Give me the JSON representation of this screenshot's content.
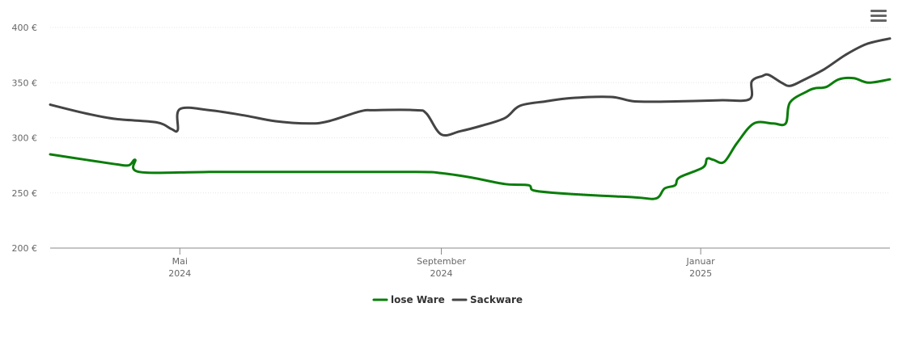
{
  "chart_data": {
    "type": "line",
    "y_ticks": [
      "200 €",
      "250 €",
      "300 €",
      "350 €",
      "400 €"
    ],
    "y_tick_values": [
      200,
      250,
      300,
      350,
      400
    ],
    "ylim": [
      200,
      400
    ],
    "x_range": [
      "2024-03-01",
      "2025-03-31"
    ],
    "x_ticks": [
      {
        "date": "2024-05-01",
        "label": "Mai",
        "year": "2024"
      },
      {
        "date": "2024-09-01",
        "label": "September",
        "year": "2024"
      },
      {
        "date": "2025-01-01",
        "label": "Januar",
        "year": "2025"
      }
    ],
    "grid": true,
    "legend_position": "bottom-center",
    "series": [
      {
        "name": "lose Ware",
        "color": "#0a7d0a",
        "points": [
          [
            "2024-03-01",
            285
          ],
          [
            "2024-03-18",
            280
          ],
          [
            "2024-04-01",
            276
          ],
          [
            "2024-04-07",
            275
          ],
          [
            "2024-04-10",
            280
          ],
          [
            "2024-04-12",
            269
          ],
          [
            "2024-05-15",
            269
          ],
          [
            "2024-07-01",
            269
          ],
          [
            "2024-08-20",
            269
          ],
          [
            "2024-09-01",
            268
          ],
          [
            "2024-09-15",
            264
          ],
          [
            "2024-10-01",
            258
          ],
          [
            "2024-10-12",
            257
          ],
          [
            "2024-10-15",
            252
          ],
          [
            "2024-11-01",
            249
          ],
          [
            "2024-12-01",
            246
          ],
          [
            "2024-12-11",
            245
          ],
          [
            "2024-12-15",
            254
          ],
          [
            "2024-12-20",
            257
          ],
          [
            "2024-12-22",
            264
          ],
          [
            "2025-01-02",
            273
          ],
          [
            "2025-01-04",
            281
          ],
          [
            "2025-01-07",
            280
          ],
          [
            "2025-01-12",
            278
          ],
          [
            "2025-01-18",
            295
          ],
          [
            "2025-01-26",
            313
          ],
          [
            "2025-02-04",
            313
          ],
          [
            "2025-02-10",
            313
          ],
          [
            "2025-02-12",
            332
          ],
          [
            "2025-02-20",
            342
          ],
          [
            "2025-02-24",
            345
          ],
          [
            "2025-03-01",
            346
          ],
          [
            "2025-03-07",
            353
          ],
          [
            "2025-03-14",
            354
          ],
          [
            "2025-03-21",
            350
          ],
          [
            "2025-03-31",
            353
          ]
        ]
      },
      {
        "name": "Sackware",
        "color": "#444444",
        "points": [
          [
            "2024-03-01",
            330
          ],
          [
            "2024-03-18",
            322
          ],
          [
            "2024-04-01",
            317
          ],
          [
            "2024-04-20",
            314
          ],
          [
            "2024-04-27",
            308
          ],
          [
            "2024-04-30",
            307
          ],
          [
            "2024-05-01",
            326
          ],
          [
            "2024-05-15",
            325
          ],
          [
            "2024-06-01",
            320
          ],
          [
            "2024-06-15",
            315
          ],
          [
            "2024-07-01",
            313
          ],
          [
            "2024-07-10",
            315
          ],
          [
            "2024-07-25",
            324
          ],
          [
            "2024-08-01",
            325
          ],
          [
            "2024-08-20",
            325
          ],
          [
            "2024-08-25",
            322
          ],
          [
            "2024-09-01",
            303
          ],
          [
            "2024-09-10",
            306
          ],
          [
            "2024-09-20",
            311
          ],
          [
            "2024-10-01",
            318
          ],
          [
            "2024-10-08",
            329
          ],
          [
            "2024-10-20",
            333
          ],
          [
            "2024-11-01",
            336
          ],
          [
            "2024-11-20",
            337
          ],
          [
            "2024-12-01",
            333
          ],
          [
            "2024-12-20",
            333
          ],
          [
            "2025-01-10",
            334
          ],
          [
            "2025-01-24",
            335
          ],
          [
            "2025-01-25",
            351
          ],
          [
            "2025-01-30",
            356
          ],
          [
            "2025-02-02",
            357
          ],
          [
            "2025-02-08",
            350
          ],
          [
            "2025-02-12",
            347
          ],
          [
            "2025-02-18",
            352
          ],
          [
            "2025-02-28",
            362
          ],
          [
            "2025-03-10",
            375
          ],
          [
            "2025-03-20",
            385
          ],
          [
            "2025-03-31",
            390
          ]
        ]
      }
    ]
  },
  "menu": {
    "icon": "hamburger-menu-icon"
  }
}
